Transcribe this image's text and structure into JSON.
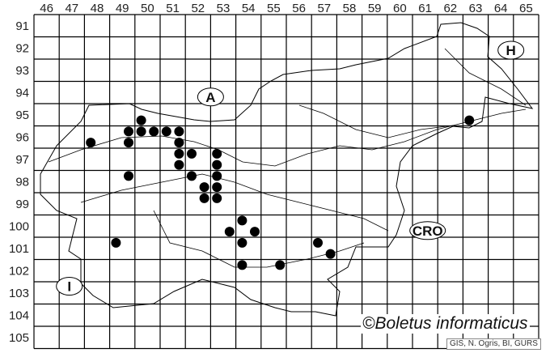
{
  "map": {
    "columns": [
      "46",
      "47",
      "48",
      "49",
      "50",
      "51",
      "52",
      "53",
      "54",
      "55",
      "56",
      "57",
      "58",
      "59",
      "60",
      "61",
      "62",
      "63",
      "64",
      "65"
    ],
    "rows": [
      "91",
      "92",
      "93",
      "94",
      "95",
      "96",
      "97",
      "98",
      "99",
      "100",
      "101",
      "102",
      "103",
      "104",
      "105"
    ],
    "country_labels": [
      {
        "text": "A",
        "col": 52.5,
        "row": 94.2
      },
      {
        "text": "H",
        "col": 64.4,
        "row": 92.1
      },
      {
        "text": "CRO",
        "col": 61.1,
        "row": 100.2
      },
      {
        "text": "I",
        "col": 46.9,
        "row": 102.7
      }
    ],
    "records": [
      {
        "col": 47.75,
        "row": 96.25
      },
      {
        "col": 49.75,
        "row": 95.25
      },
      {
        "col": 49.25,
        "row": 95.75
      },
      {
        "col": 49.75,
        "row": 95.75
      },
      {
        "col": 50.25,
        "row": 95.75
      },
      {
        "col": 50.75,
        "row": 95.75
      },
      {
        "col": 51.25,
        "row": 95.75
      },
      {
        "col": 49.25,
        "row": 96.25
      },
      {
        "col": 51.25,
        "row": 96.25
      },
      {
        "col": 51.25,
        "row": 96.75
      },
      {
        "col": 51.75,
        "row": 96.75
      },
      {
        "col": 52.75,
        "row": 96.75
      },
      {
        "col": 51.25,
        "row": 97.25
      },
      {
        "col": 52.75,
        "row": 97.25
      },
      {
        "col": 49.25,
        "row": 97.75
      },
      {
        "col": 51.75,
        "row": 97.75
      },
      {
        "col": 52.75,
        "row": 97.75
      },
      {
        "col": 52.25,
        "row": 98.25
      },
      {
        "col": 52.75,
        "row": 98.25
      },
      {
        "col": 52.25,
        "row": 98.75
      },
      {
        "col": 52.75,
        "row": 98.75
      },
      {
        "col": 53.75,
        "row": 99.75
      },
      {
        "col": 53.25,
        "row": 100.25
      },
      {
        "col": 54.25,
        "row": 100.25
      },
      {
        "col": 53.75,
        "row": 100.75
      },
      {
        "col": 53.75,
        "row": 101.75
      },
      {
        "col": 48.75,
        "row": 100.75
      },
      {
        "col": 56.75,
        "row": 100.75
      },
      {
        "col": 57.25,
        "row": 101.25
      },
      {
        "col": 55.25,
        "row": 101.75
      },
      {
        "col": 62.75,
        "row": 95.25
      }
    ],
    "record_color": "#000000",
    "grid_color": "#000000"
  },
  "credit": {
    "title": "©Boletus informaticus",
    "source": "GIS, N. Ogris, BI, GURS"
  }
}
